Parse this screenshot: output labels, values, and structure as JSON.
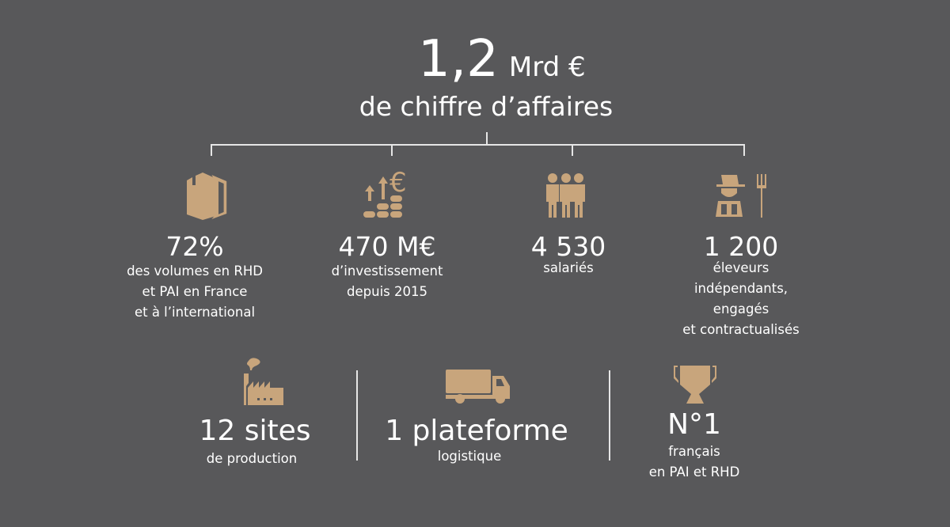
{
  "colors": {
    "background": "#58585a",
    "accent": "#c8a57c",
    "text": "#ffffff"
  },
  "headline": {
    "value": "1,2",
    "unit": "Mrd €",
    "caption": "de chiffre d’affaires"
  },
  "stats": [
    {
      "icon": "box-icon",
      "value": "72%",
      "lines": [
        "des volumes en RHD",
        "et PAI en France",
        "et à l’international"
      ]
    },
    {
      "icon": "coins-euro-growth-icon",
      "value": "470 M€",
      "lines": [
        "d’investissement",
        "depuis 2015"
      ]
    },
    {
      "icon": "people-icon",
      "value": "4 530",
      "lines": [
        "salariés"
      ]
    },
    {
      "icon": "farmer-pitchfork-icon",
      "value": "1 200",
      "lines": [
        "éleveurs",
        "indépendants,",
        "engagés",
        "et contractualisés"
      ]
    }
  ],
  "bottom": [
    {
      "icon": "factory-icon",
      "value": "12 sites",
      "lines": [
        "de production"
      ]
    },
    {
      "icon": "truck-icon",
      "value": "1 plateforme",
      "lines": [
        "logistique"
      ]
    },
    {
      "icon": "trophy-icon",
      "value": "N°1",
      "lines": [
        "français",
        "en PAI et RHD"
      ]
    }
  ]
}
